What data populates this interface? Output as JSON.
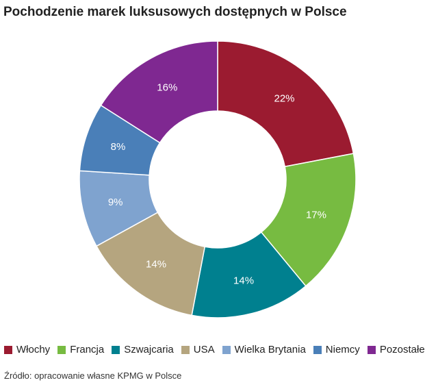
{
  "title": "Pochodzenie marek luksusowych dostępnych w Polsce",
  "source": "Źródło: opracowanie własne KPMG w Polsce",
  "chart_data": {
    "type": "pie",
    "donut": true,
    "title": "Pochodzenie marek luksusowych dostępnych w Polsce",
    "legend_position": "bottom",
    "categories": [
      "Włochy",
      "Francja",
      "Szwajcaria",
      "USA",
      "Wielka Brytania",
      "Niemcy",
      "Pozostałe"
    ],
    "values": [
      22,
      17,
      14,
      14,
      9,
      8,
      16
    ],
    "labels": [
      "22%",
      "17%",
      "14%",
      "14%",
      "9%",
      "8%",
      "16%"
    ],
    "colors": [
      "#9b1b30",
      "#77bb41",
      "#00808f",
      "#b5a57f",
      "#7fa3cf",
      "#4a7fb8",
      "#7f2891"
    ]
  }
}
